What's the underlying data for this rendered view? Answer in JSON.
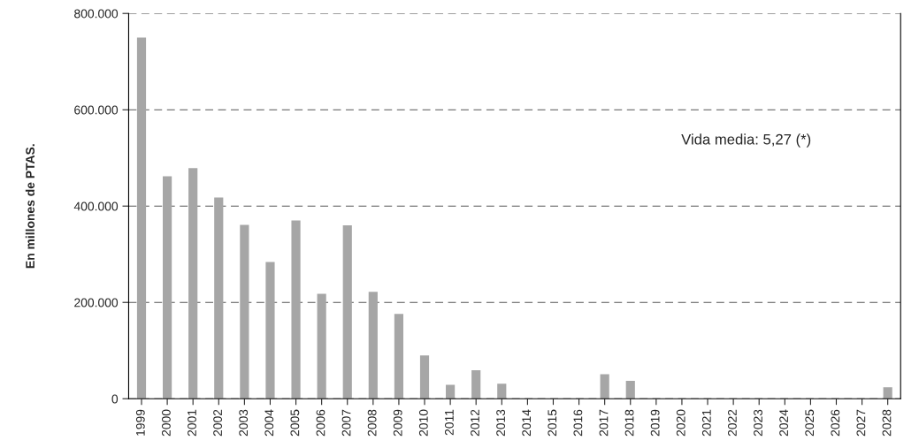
{
  "chart_data": {
    "type": "bar",
    "ylabel": "En millones de PTAS.",
    "categories": [
      "1999",
      "2000",
      "2001",
      "2002",
      "2003",
      "2004",
      "2005",
      "2006",
      "2007",
      "2008",
      "2009",
      "2010",
      "2011",
      "2012",
      "2013",
      "2014",
      "2015",
      "2016",
      "2017",
      "2018",
      "2019",
      "2020",
      "2021",
      "2022",
      "2023",
      "2024",
      "2025",
      "2026",
      "2027",
      "2028"
    ],
    "values": [
      750000,
      462000,
      479000,
      418000,
      361000,
      284000,
      370000,
      218000,
      360000,
      222000,
      176000,
      90000,
      29000,
      59000,
      31000,
      0,
      null,
      0,
      51000,
      37000,
      0,
      0,
      0,
      0,
      null,
      null,
      0,
      0,
      null,
      24000
    ],
    "color": "#a6a6a6",
    "ylim": [
      0,
      800000
    ],
    "yticks": [
      {
        "value": 0,
        "label": "0"
      },
      {
        "value": 200000,
        "label": "200.000"
      },
      {
        "value": 400000,
        "label": "400.000"
      },
      {
        "value": 600000,
        "label": "600.000"
      },
      {
        "value": 800000,
        "label": "800.000"
      }
    ],
    "grid": "y",
    "annotations": [
      "Vida media: 5,27 (*)"
    ]
  }
}
